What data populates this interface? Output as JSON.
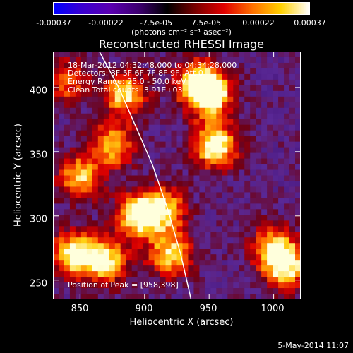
{
  "colorbar": {
    "ticks": [
      "-0.00037",
      "-0.00022",
      "-7.5e-05",
      "7.5e-05",
      "0.00022",
      "0.00037"
    ],
    "units": "(photons cm⁻² s⁻¹ asec⁻²)",
    "colors": [
      "#0000ff",
      "#3a00d0",
      "#5a00b0",
      "#3d0070",
      "#000000",
      "#7a0000",
      "#e00000",
      "#ff7000",
      "#ffd000",
      "#ffffff"
    ]
  },
  "chart_data": {
    "type": "heatmap",
    "title": "Reconstructed RHESSI Image",
    "xlabel": "Heliocentric X (arcsec)",
    "ylabel": "Heliocentric Y (arcsec)",
    "xlim": [
      829,
      1021
    ],
    "ylim": [
      235,
      428
    ],
    "xticks": [
      "850",
      "900",
      "950",
      "1000"
    ],
    "yticks": [
      "250",
      "300",
      "350",
      "400"
    ],
    "info_lines": [
      "18-Mar-2012 04:32:48.000 to 04:34:28.000",
      "Detectors: 3F 5F 6F 7F 8F 9F, Att 0",
      "Energy Range: 25.0 - 50.0 keV",
      "Clean     Total counts: 3.91E+03"
    ],
    "peak_label": "Position of Peak = [958,398]",
    "peak_position": [
      958,
      398
    ],
    "limb_curve": [
      [
        865,
        428
      ],
      [
        880,
        400
      ],
      [
        893,
        370
      ],
      [
        906,
        340
      ],
      [
        918,
        305
      ],
      [
        928,
        270
      ],
      [
        936,
        235
      ]
    ],
    "hot_spots": [
      {
        "x": 950,
        "y": 395,
        "intensity": 1.0
      },
      {
        "x": 955,
        "y": 355,
        "intensity": 0.95
      },
      {
        "x": 885,
        "y": 395,
        "intensity": 0.75
      },
      {
        "x": 875,
        "y": 355,
        "intensity": 0.7
      },
      {
        "x": 850,
        "y": 330,
        "intensity": 0.7
      },
      {
        "x": 895,
        "y": 300,
        "intensity": 0.85
      },
      {
        "x": 915,
        "y": 305,
        "intensity": 0.7
      },
      {
        "x": 845,
        "y": 270,
        "intensity": 0.85
      },
      {
        "x": 870,
        "y": 265,
        "intensity": 0.8
      },
      {
        "x": 920,
        "y": 270,
        "intensity": 0.75
      },
      {
        "x": 1000,
        "y": 275,
        "intensity": 0.7
      },
      {
        "x": 1010,
        "y": 260,
        "intensity": 0.75
      },
      {
        "x": 940,
        "y": 405,
        "intensity": 0.6
      },
      {
        "x": 840,
        "y": 405,
        "intensity": 0.5
      }
    ]
  },
  "footer": "5-May-2014 11:07"
}
